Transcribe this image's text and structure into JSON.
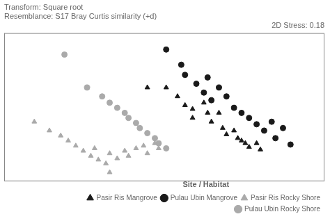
{
  "chart_data": {
    "type": "scatter",
    "title": "Transform: Square root\nResemblance: S17 Bray Curtis similarity (+d)",
    "subtitle": "2D Stress: 0.18",
    "legend_title": "Site / Habitat",
    "series": [
      {
        "name": "Pasir Ris Mangrove",
        "color": "#1a1a1a",
        "marker": "triangle",
        "x": [
          0.38,
          0.43,
          0.46,
          0.48,
          0.5,
          0.5,
          0.53,
          0.54,
          0.55,
          0.57,
          0.58,
          0.59,
          0.61,
          0.62,
          0.63,
          0.64,
          0.65,
          0.67,
          0.68
        ],
        "values": [
          0.62,
          0.62,
          0.55,
          0.48,
          0.45,
          0.38,
          0.5,
          0.42,
          0.35,
          0.42,
          0.3,
          0.25,
          0.28,
          0.22,
          0.2,
          0.18,
          0.15,
          0.18,
          0.13
        ]
      },
      {
        "name": "Pulau Ubin Mangrove",
        "color": "#1a1a1a",
        "marker": "circle",
        "x": [
          0.43,
          0.47,
          0.48,
          0.51,
          0.53,
          0.54,
          0.55,
          0.57,
          0.59,
          0.61,
          0.63,
          0.65,
          0.67,
          0.69,
          0.71,
          0.72,
          0.74,
          0.76
        ],
        "values": [
          0.92,
          0.8,
          0.72,
          0.65,
          0.58,
          0.7,
          0.52,
          0.62,
          0.55,
          0.46,
          0.42,
          0.38,
          0.33,
          0.28,
          0.35,
          0.22,
          0.3,
          0.17
        ]
      },
      {
        "name": "Pasir Ris Rocky Shore",
        "color": "#aaaaaa",
        "marker": "triangle",
        "x": [
          0.08,
          0.12,
          0.15,
          0.17,
          0.19,
          0.21,
          0.23,
          0.24,
          0.25,
          0.27,
          0.28,
          0.3,
          0.32,
          0.33,
          0.35,
          0.37,
          0.38,
          0.4,
          0.41,
          0.28
        ],
        "values": [
          0.35,
          0.28,
          0.24,
          0.2,
          0.16,
          0.12,
          0.08,
          0.14,
          0.05,
          0.02,
          0.1,
          0.06,
          0.12,
          0.08,
          0.14,
          0.16,
          0.1,
          0.18,
          0.14,
          -0.05
        ]
      },
      {
        "name": "Pulau Ubin Rocky Shore",
        "color": "#aaaaaa",
        "marker": "circle",
        "x": [
          0.16,
          0.22,
          0.26,
          0.28,
          0.3,
          0.32,
          0.33,
          0.35,
          0.36,
          0.38,
          0.4,
          0.41,
          0.43
        ],
        "values": [
          0.88,
          0.62,
          0.55,
          0.5,
          0.46,
          0.42,
          0.38,
          0.34,
          0.3,
          0.26,
          0.22,
          0.18,
          0.14
        ]
      }
    ],
    "xlim": [
      0.0,
      0.85
    ],
    "ylim": [
      -0.12,
      1.05
    ],
    "tick_labels": false,
    "grid": false,
    "legend": "lower right"
  }
}
